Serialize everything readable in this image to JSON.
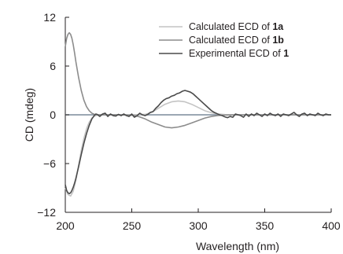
{
  "chart_data": {
    "type": "line",
    "title": "",
    "xlabel": "Wavelength (nm)",
    "ylabel": "CD (mdeg)",
    "xlim": [
      200,
      400
    ],
    "ylim": [
      -12,
      12
    ],
    "xticks": [
      200,
      250,
      300,
      350,
      400
    ],
    "yticks": [
      -12,
      -6,
      0,
      6,
      12
    ],
    "ytick_labels": [
      "−12",
      "−6",
      "0",
      "6",
      "12"
    ],
    "grid": false,
    "zero_line": true,
    "legend_position": "top-right",
    "series": [
      {
        "name_parts": [
          {
            "text": "Calculated ECD of ",
            "bold": false
          },
          {
            "text": "1a",
            "bold": true
          }
        ],
        "color": "#c4c4c4",
        "x": [
          200,
          202,
          204,
          206,
          208,
          210,
          212,
          214,
          216,
          218,
          220,
          222,
          224,
          226,
          230,
          240,
          250,
          260,
          265,
          270,
          275,
          280,
          285,
          290,
          295,
          300,
          305,
          310,
          315,
          320,
          330,
          340,
          360,
          380,
          400
        ],
        "y": [
          -9.0,
          -9.8,
          -10.0,
          -9.4,
          -8.0,
          -6.2,
          -4.4,
          -2.9,
          -1.7,
          -0.9,
          -0.4,
          -0.15,
          -0.05,
          0,
          0,
          0,
          0,
          0.05,
          0.3,
          0.8,
          1.3,
          1.6,
          1.7,
          1.6,
          1.3,
          0.9,
          0.5,
          0.25,
          0.1,
          0.03,
          0,
          0,
          0,
          0,
          0
        ]
      },
      {
        "name_parts": [
          {
            "text": "Calculated ECD of ",
            "bold": false
          },
          {
            "text": "1b",
            "bold": true
          }
        ],
        "color": "#8c8c8c",
        "x": [
          200,
          201,
          202,
          203,
          204,
          205,
          206,
          207,
          208,
          210,
          212,
          214,
          216,
          218,
          220,
          222,
          224,
          226,
          230,
          240,
          250,
          255,
          260,
          265,
          270,
          275,
          280,
          285,
          290,
          295,
          300,
          305,
          310,
          315,
          320,
          330,
          340,
          360,
          380,
          400
        ],
        "y": [
          8.4,
          9.4,
          9.9,
          10.1,
          9.9,
          9.4,
          8.6,
          7.6,
          6.5,
          4.6,
          3.0,
          1.8,
          1.0,
          0.5,
          0.2,
          0.05,
          0,
          0,
          0,
          0,
          -0.05,
          -0.2,
          -0.5,
          -0.9,
          -1.2,
          -1.5,
          -1.6,
          -1.5,
          -1.3,
          -1.0,
          -0.7,
          -0.4,
          -0.2,
          -0.08,
          -0.03,
          0,
          0,
          0,
          0,
          0
        ]
      },
      {
        "name_parts": [
          {
            "text": "Experimental ECD of ",
            "bold": false
          },
          {
            "text": "1",
            "bold": true
          }
        ],
        "color": "#4a4a4a",
        "x": [
          200,
          201,
          202,
          203,
          204,
          205,
          206,
          207,
          208,
          210,
          212,
          214,
          216,
          218,
          220,
          222,
          223,
          224,
          226,
          228,
          230,
          232,
          234,
          236,
          238,
          240,
          242,
          244,
          246,
          248,
          250,
          252,
          254,
          256,
          258,
          260,
          262,
          264,
          266,
          268,
          270,
          272,
          274,
          276,
          278,
          280,
          282,
          284,
          286,
          288,
          290,
          292,
          294,
          296,
          298,
          300,
          302,
          304,
          306,
          308,
          310,
          312,
          314,
          316,
          318,
          320,
          322,
          324,
          326,
          328,
          330,
          332,
          334,
          336,
          338,
          340,
          342,
          344,
          346,
          348,
          350,
          352,
          354,
          356,
          358,
          360,
          362,
          364,
          366,
          368,
          370,
          372,
          374,
          376,
          378,
          380,
          382,
          384,
          386,
          388,
          390,
          392,
          394,
          396,
          398,
          400
        ],
        "y": [
          -8.6,
          -9.3,
          -9.6,
          -9.7,
          -9.6,
          -9.3,
          -8.9,
          -8.4,
          -7.8,
          -6.4,
          -4.9,
          -3.5,
          -2.3,
          -1.3,
          -0.5,
          -0.05,
          0.1,
          0.05,
          -0.2,
          0.1,
          0.2,
          -0.2,
          0.1,
          -0.1,
          -0.15,
          0.05,
          -0.1,
          0.1,
          -0.1,
          -0.2,
          0.1,
          -0.3,
          -0.1,
          0.2,
          0.0,
          -0.1,
          0.05,
          0.3,
          0.4,
          0.8,
          1.1,
          1.5,
          1.8,
          2.0,
          2.1,
          2.3,
          2.4,
          2.6,
          2.7,
          2.9,
          3.0,
          2.9,
          2.8,
          2.6,
          2.3,
          2.0,
          1.7,
          1.4,
          1.1,
          0.8,
          0.5,
          0.3,
          0.15,
          0.0,
          -0.1,
          -0.25,
          -0.35,
          -0.2,
          -0.3,
          0.1,
          0.0,
          -0.1,
          -0.3,
          0.1,
          -0.2,
          0.1,
          -0.1,
          0.2,
          0.0,
          -0.2,
          0.1,
          -0.1,
          0.2,
          0.0,
          -0.1,
          0.1,
          -0.2,
          0.1,
          0.0,
          -0.1,
          0.1,
          0.3,
          0.0,
          -0.2,
          0.1,
          0.2,
          -0.1,
          0.1,
          0.0,
          -0.1,
          0.2,
          0.0,
          -0.1,
          0.1,
          0.0,
          0.0
        ]
      }
    ]
  }
}
